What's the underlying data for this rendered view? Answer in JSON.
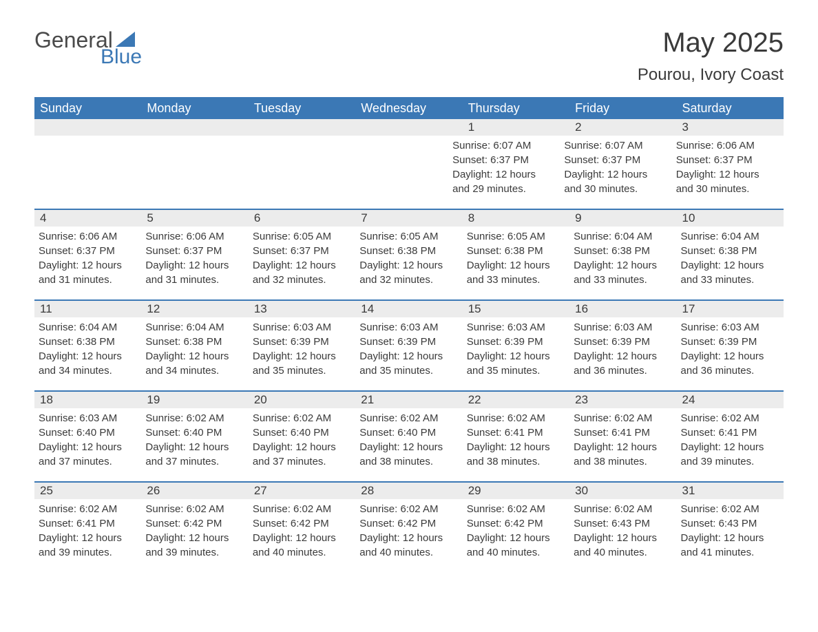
{
  "logo": {
    "word1": "General",
    "word2": "Blue",
    "color1": "#4a4a4a",
    "color2": "#3b78b5"
  },
  "title": "May 2025",
  "location": "Pourou, Ivory Coast",
  "colors": {
    "header_bg": "#3b78b5",
    "header_text": "#ffffff",
    "daynum_bg": "#ececec",
    "daynum_border": "#3b78b5",
    "body_text": "#3a3a3a",
    "page_bg": "#ffffff"
  },
  "weekdays": [
    "Sunday",
    "Monday",
    "Tuesday",
    "Wednesday",
    "Thursday",
    "Friday",
    "Saturday"
  ],
  "weeks": [
    {
      "nums": [
        "",
        "",
        "",
        "",
        "1",
        "2",
        "3"
      ],
      "cells": [
        null,
        null,
        null,
        null,
        {
          "sunrise": "Sunrise: 6:07 AM",
          "sunset": "Sunset: 6:37 PM",
          "day1": "Daylight: 12 hours",
          "day2": "and 29 minutes."
        },
        {
          "sunrise": "Sunrise: 6:07 AM",
          "sunset": "Sunset: 6:37 PM",
          "day1": "Daylight: 12 hours",
          "day2": "and 30 minutes."
        },
        {
          "sunrise": "Sunrise: 6:06 AM",
          "sunset": "Sunset: 6:37 PM",
          "day1": "Daylight: 12 hours",
          "day2": "and 30 minutes."
        }
      ]
    },
    {
      "nums": [
        "4",
        "5",
        "6",
        "7",
        "8",
        "9",
        "10"
      ],
      "cells": [
        {
          "sunrise": "Sunrise: 6:06 AM",
          "sunset": "Sunset: 6:37 PM",
          "day1": "Daylight: 12 hours",
          "day2": "and 31 minutes."
        },
        {
          "sunrise": "Sunrise: 6:06 AM",
          "sunset": "Sunset: 6:37 PM",
          "day1": "Daylight: 12 hours",
          "day2": "and 31 minutes."
        },
        {
          "sunrise": "Sunrise: 6:05 AM",
          "sunset": "Sunset: 6:37 PM",
          "day1": "Daylight: 12 hours",
          "day2": "and 32 minutes."
        },
        {
          "sunrise": "Sunrise: 6:05 AM",
          "sunset": "Sunset: 6:38 PM",
          "day1": "Daylight: 12 hours",
          "day2": "and 32 minutes."
        },
        {
          "sunrise": "Sunrise: 6:05 AM",
          "sunset": "Sunset: 6:38 PM",
          "day1": "Daylight: 12 hours",
          "day2": "and 33 minutes."
        },
        {
          "sunrise": "Sunrise: 6:04 AM",
          "sunset": "Sunset: 6:38 PM",
          "day1": "Daylight: 12 hours",
          "day2": "and 33 minutes."
        },
        {
          "sunrise": "Sunrise: 6:04 AM",
          "sunset": "Sunset: 6:38 PM",
          "day1": "Daylight: 12 hours",
          "day2": "and 33 minutes."
        }
      ]
    },
    {
      "nums": [
        "11",
        "12",
        "13",
        "14",
        "15",
        "16",
        "17"
      ],
      "cells": [
        {
          "sunrise": "Sunrise: 6:04 AM",
          "sunset": "Sunset: 6:38 PM",
          "day1": "Daylight: 12 hours",
          "day2": "and 34 minutes."
        },
        {
          "sunrise": "Sunrise: 6:04 AM",
          "sunset": "Sunset: 6:38 PM",
          "day1": "Daylight: 12 hours",
          "day2": "and 34 minutes."
        },
        {
          "sunrise": "Sunrise: 6:03 AM",
          "sunset": "Sunset: 6:39 PM",
          "day1": "Daylight: 12 hours",
          "day2": "and 35 minutes."
        },
        {
          "sunrise": "Sunrise: 6:03 AM",
          "sunset": "Sunset: 6:39 PM",
          "day1": "Daylight: 12 hours",
          "day2": "and 35 minutes."
        },
        {
          "sunrise": "Sunrise: 6:03 AM",
          "sunset": "Sunset: 6:39 PM",
          "day1": "Daylight: 12 hours",
          "day2": "and 35 minutes."
        },
        {
          "sunrise": "Sunrise: 6:03 AM",
          "sunset": "Sunset: 6:39 PM",
          "day1": "Daylight: 12 hours",
          "day2": "and 36 minutes."
        },
        {
          "sunrise": "Sunrise: 6:03 AM",
          "sunset": "Sunset: 6:39 PM",
          "day1": "Daylight: 12 hours",
          "day2": "and 36 minutes."
        }
      ]
    },
    {
      "nums": [
        "18",
        "19",
        "20",
        "21",
        "22",
        "23",
        "24"
      ],
      "cells": [
        {
          "sunrise": "Sunrise: 6:03 AM",
          "sunset": "Sunset: 6:40 PM",
          "day1": "Daylight: 12 hours",
          "day2": "and 37 minutes."
        },
        {
          "sunrise": "Sunrise: 6:02 AM",
          "sunset": "Sunset: 6:40 PM",
          "day1": "Daylight: 12 hours",
          "day2": "and 37 minutes."
        },
        {
          "sunrise": "Sunrise: 6:02 AM",
          "sunset": "Sunset: 6:40 PM",
          "day1": "Daylight: 12 hours",
          "day2": "and 37 minutes."
        },
        {
          "sunrise": "Sunrise: 6:02 AM",
          "sunset": "Sunset: 6:40 PM",
          "day1": "Daylight: 12 hours",
          "day2": "and 38 minutes."
        },
        {
          "sunrise": "Sunrise: 6:02 AM",
          "sunset": "Sunset: 6:41 PM",
          "day1": "Daylight: 12 hours",
          "day2": "and 38 minutes."
        },
        {
          "sunrise": "Sunrise: 6:02 AM",
          "sunset": "Sunset: 6:41 PM",
          "day1": "Daylight: 12 hours",
          "day2": "and 38 minutes."
        },
        {
          "sunrise": "Sunrise: 6:02 AM",
          "sunset": "Sunset: 6:41 PM",
          "day1": "Daylight: 12 hours",
          "day2": "and 39 minutes."
        }
      ]
    },
    {
      "nums": [
        "25",
        "26",
        "27",
        "28",
        "29",
        "30",
        "31"
      ],
      "cells": [
        {
          "sunrise": "Sunrise: 6:02 AM",
          "sunset": "Sunset: 6:41 PM",
          "day1": "Daylight: 12 hours",
          "day2": "and 39 minutes."
        },
        {
          "sunrise": "Sunrise: 6:02 AM",
          "sunset": "Sunset: 6:42 PM",
          "day1": "Daylight: 12 hours",
          "day2": "and 39 minutes."
        },
        {
          "sunrise": "Sunrise: 6:02 AM",
          "sunset": "Sunset: 6:42 PM",
          "day1": "Daylight: 12 hours",
          "day2": "and 40 minutes."
        },
        {
          "sunrise": "Sunrise: 6:02 AM",
          "sunset": "Sunset: 6:42 PM",
          "day1": "Daylight: 12 hours",
          "day2": "and 40 minutes."
        },
        {
          "sunrise": "Sunrise: 6:02 AM",
          "sunset": "Sunset: 6:42 PM",
          "day1": "Daylight: 12 hours",
          "day2": "and 40 minutes."
        },
        {
          "sunrise": "Sunrise: 6:02 AM",
          "sunset": "Sunset: 6:43 PM",
          "day1": "Daylight: 12 hours",
          "day2": "and 40 minutes."
        },
        {
          "sunrise": "Sunrise: 6:02 AM",
          "sunset": "Sunset: 6:43 PM",
          "day1": "Daylight: 12 hours",
          "day2": "and 41 minutes."
        }
      ]
    }
  ]
}
